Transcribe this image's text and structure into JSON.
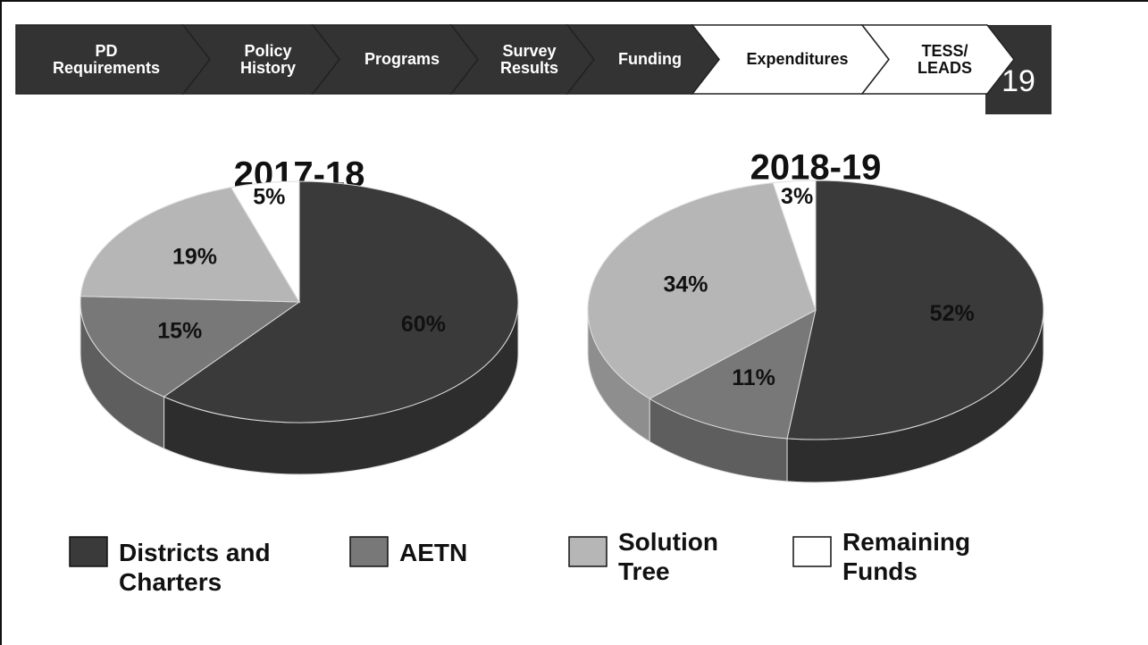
{
  "nav": [
    {
      "label": "PD Requirements"
    },
    {
      "label": "Policy History"
    },
    {
      "label": "Programs"
    },
    {
      "label": "Survey Results"
    },
    {
      "label": "Funding"
    },
    {
      "label": "Expenditures"
    },
    {
      "label": "TESS/ LEADS"
    }
  ],
  "page_number": "19",
  "legend": {
    "categories": [
      "Districts and Charters",
      "AETN",
      "Solution Tree",
      "Remaining Funds"
    ],
    "colors": [
      "#3a3a3a",
      "#787878",
      "#b6b6b6",
      "#ffffff"
    ]
  },
  "chart_data": [
    {
      "type": "pie",
      "title": "2017-18",
      "values": [
        60,
        15,
        19,
        5
      ],
      "value_labels": [
        "60%",
        "15%",
        "19%",
        "5%"
      ]
    },
    {
      "type": "pie",
      "title": "2018-19",
      "values": [
        52,
        11,
        34,
        3
      ],
      "value_labels": [
        "52%",
        "11%",
        "34%",
        "3%"
      ]
    }
  ]
}
